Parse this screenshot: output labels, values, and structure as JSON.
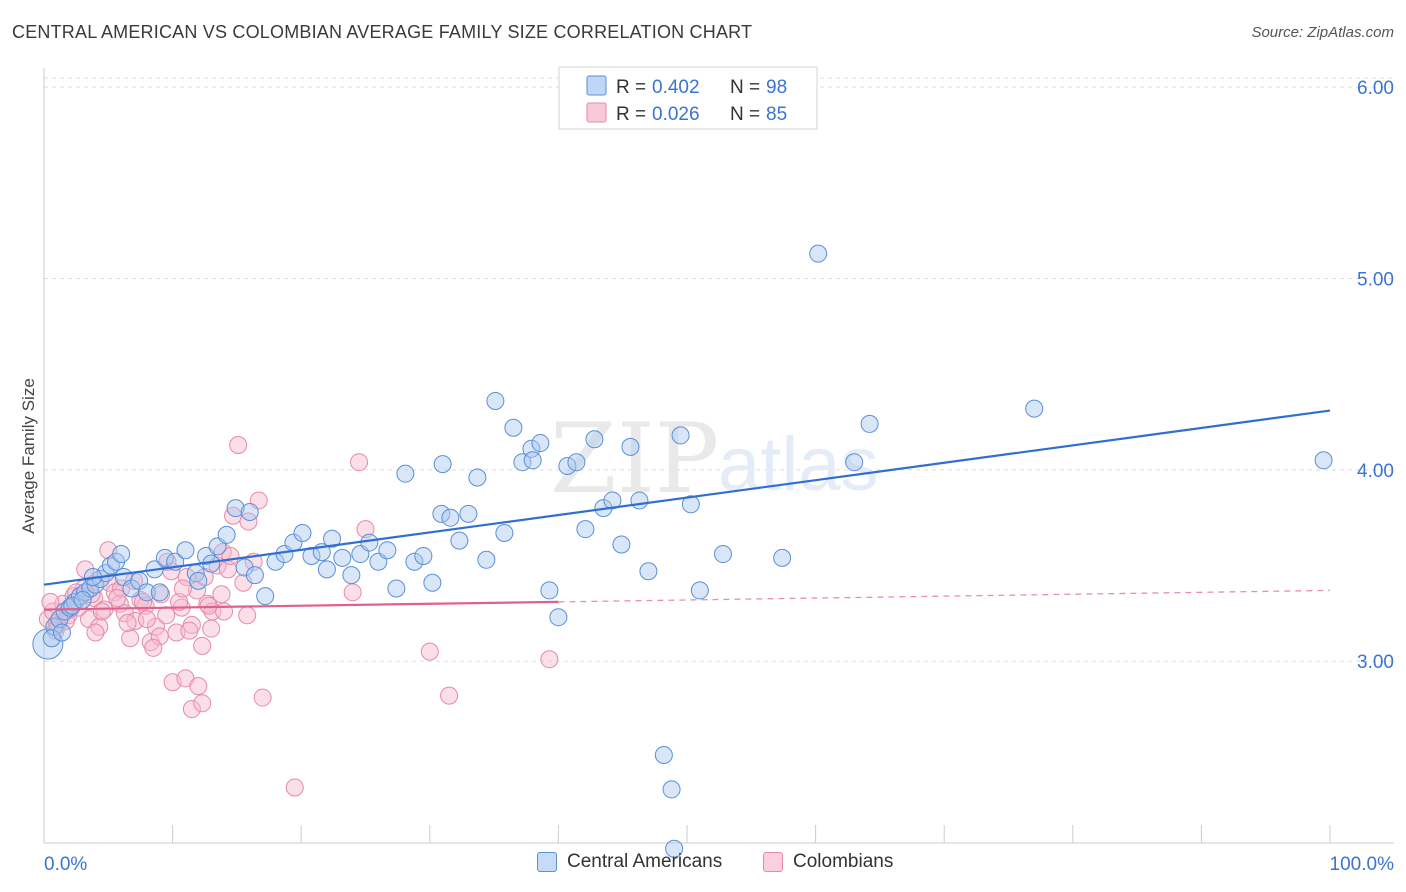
{
  "title": "CENTRAL AMERICAN VS COLOMBIAN AVERAGE FAMILY SIZE CORRELATION CHART",
  "source": "Source: ZipAtlas.com",
  "watermark": {
    "zip": "ZIP",
    "atlas": "atlas"
  },
  "legend_top": [
    {
      "r_label": "R =",
      "r_value": "0.402",
      "n_label": "N =",
      "n_value": "98"
    },
    {
      "r_label": "R =",
      "r_value": "0.026",
      "n_label": "N =",
      "n_value": "85"
    }
  ],
  "legend_bottom": [
    "Central Americans",
    "Colombians"
  ],
  "colors": {
    "blue_fill": "#a9c8f0",
    "blue_stroke": "#5b8fd8",
    "blue_line": "#2f6fd0",
    "pink_fill": "#f6b8cc",
    "pink_stroke": "#e58aa8",
    "pink_line": "#e0608c",
    "value_text": "#3a74d0",
    "grid": "#dddddd"
  },
  "chart_data": {
    "type": "scatter",
    "title": "CENTRAL AMERICAN VS COLOMBIAN AVERAGE FAMILY SIZE CORRELATION CHART",
    "xlabel": "",
    "ylabel": "Average Family Size",
    "xlim": [
      0,
      100
    ],
    "ylim": [
      2.05,
      6.1
    ],
    "x_tick_labels": [
      "0.0%",
      "100.0%"
    ],
    "y_ticks": [
      3.0,
      4.0,
      5.0,
      6.0
    ],
    "y_tick_labels": [
      "3.00",
      "4.00",
      "5.00",
      "6.00"
    ],
    "grid": true,
    "series": [
      {
        "name": "Central Americans",
        "r": 0.402,
        "n": 98,
        "trend": {
          "x": [
            0,
            100
          ],
          "y": [
            3.4,
            4.31
          ]
        },
        "points": [
          [
            0.3,
            3.09
          ],
          [
            0.8,
            3.18
          ],
          [
            1.2,
            3.22
          ],
          [
            1.6,
            3.26
          ],
          [
            2.0,
            3.28
          ],
          [
            2.4,
            3.31
          ],
          [
            2.8,
            3.34
          ],
          [
            3.2,
            3.36
          ],
          [
            3.6,
            3.38
          ],
          [
            4.0,
            3.4
          ],
          [
            4.4,
            3.43
          ],
          [
            4.8,
            3.46
          ],
          [
            5.2,
            3.5
          ],
          [
            5.6,
            3.52
          ],
          [
            6.2,
            3.44
          ],
          [
            6.8,
            3.38
          ],
          [
            7.4,
            3.42
          ],
          [
            8.0,
            3.36
          ],
          [
            8.6,
            3.48
          ],
          [
            9.4,
            3.54
          ],
          [
            10.2,
            3.52
          ],
          [
            11.0,
            3.58
          ],
          [
            11.8,
            3.46
          ],
          [
            12.6,
            3.55
          ],
          [
            13.5,
            3.6
          ],
          [
            14.2,
            3.66
          ],
          [
            14.9,
            3.8
          ],
          [
            15.6,
            3.49
          ],
          [
            16.4,
            3.45
          ],
          [
            17.2,
            3.34
          ],
          [
            18.0,
            3.52
          ],
          [
            18.7,
            3.56
          ],
          [
            19.4,
            3.62
          ],
          [
            20.1,
            3.67
          ],
          [
            20.8,
            3.55
          ],
          [
            21.6,
            3.57
          ],
          [
            22.4,
            3.64
          ],
          [
            23.2,
            3.54
          ],
          [
            23.9,
            3.45
          ],
          [
            24.6,
            3.56
          ],
          [
            25.3,
            3.62
          ],
          [
            26.0,
            3.52
          ],
          [
            26.7,
            3.58
          ],
          [
            27.4,
            3.38
          ],
          [
            28.1,
            3.98
          ],
          [
            28.8,
            3.52
          ],
          [
            29.5,
            3.55
          ],
          [
            30.2,
            3.41
          ],
          [
            30.9,
            3.77
          ],
          [
            31.6,
            3.75
          ],
          [
            32.3,
            3.63
          ],
          [
            33.0,
            3.77
          ],
          [
            33.7,
            3.96
          ],
          [
            34.4,
            3.53
          ],
          [
            35.1,
            4.36
          ],
          [
            35.8,
            3.67
          ],
          [
            36.5,
            4.22
          ],
          [
            37.2,
            4.04
          ],
          [
            37.9,
            4.11
          ],
          [
            38.6,
            4.14
          ],
          [
            39.3,
            3.37
          ],
          [
            40.0,
            3.23
          ],
          [
            40.7,
            4.02
          ],
          [
            41.4,
            4.04
          ],
          [
            42.1,
            3.69
          ],
          [
            42.8,
            4.16
          ],
          [
            43.5,
            3.8
          ],
          [
            44.2,
            3.84
          ],
          [
            44.9,
            3.61
          ],
          [
            45.6,
            4.12
          ],
          [
            46.3,
            3.84
          ],
          [
            47.0,
            3.47
          ],
          [
            48.2,
            2.51
          ],
          [
            48.8,
            2.33
          ],
          [
            49.5,
            4.18
          ],
          [
            50.3,
            3.82
          ],
          [
            51.0,
            3.37
          ],
          [
            52.8,
            3.56
          ],
          [
            57.4,
            3.54
          ],
          [
            60.2,
            5.13
          ],
          [
            63.0,
            4.04
          ],
          [
            64.2,
            4.24
          ],
          [
            77.0,
            4.32
          ],
          [
            99.5,
            4.05
          ],
          [
            0.6,
            3.12
          ],
          [
            1.4,
            3.15
          ],
          [
            2.2,
            3.29
          ],
          [
            3.0,
            3.32
          ],
          [
            3.8,
            3.44
          ],
          [
            6.0,
            3.56
          ],
          [
            9.0,
            3.36
          ],
          [
            12.0,
            3.42
          ],
          [
            13.0,
            3.51
          ],
          [
            16.0,
            3.78
          ],
          [
            22.0,
            3.48
          ],
          [
            31.0,
            4.03
          ],
          [
            49.0,
            2.02
          ],
          [
            38.0,
            4.05
          ]
        ]
      },
      {
        "name": "Colombians",
        "r": 0.026,
        "n": 85,
        "trend": {
          "x": [
            0,
            40
          ],
          "y": [
            3.27,
            3.31
          ]
        },
        "trend_extended": {
          "x": [
            40,
            100
          ],
          "y": [
            3.31,
            3.37
          ]
        },
        "points": [
          [
            0.3,
            3.22
          ],
          [
            0.7,
            3.26
          ],
          [
            1.1,
            3.19
          ],
          [
            1.5,
            3.3
          ],
          [
            1.9,
            3.24
          ],
          [
            2.3,
            3.34
          ],
          [
            2.7,
            3.28
          ],
          [
            3.1,
            3.38
          ],
          [
            3.5,
            3.22
          ],
          [
            3.9,
            3.33
          ],
          [
            4.3,
            3.18
          ],
          [
            4.7,
            3.27
          ],
          [
            5.1,
            3.41
          ],
          [
            5.5,
            3.36
          ],
          [
            5.9,
            3.3
          ],
          [
            6.3,
            3.25
          ],
          [
            6.7,
            3.12
          ],
          [
            7.1,
            3.21
          ],
          [
            7.5,
            3.32
          ],
          [
            7.9,
            3.29
          ],
          [
            8.3,
            3.1
          ],
          [
            8.7,
            3.18
          ],
          [
            9.1,
            3.35
          ],
          [
            9.5,
            3.24
          ],
          [
            9.9,
            3.47
          ],
          [
            10.3,
            3.15
          ],
          [
            10.7,
            3.28
          ],
          [
            11.1,
            3.44
          ],
          [
            11.5,
            3.19
          ],
          [
            11.9,
            3.37
          ],
          [
            12.3,
            3.08
          ],
          [
            12.7,
            3.3
          ],
          [
            13.1,
            3.26
          ],
          [
            13.5,
            3.5
          ],
          [
            13.9,
            3.57
          ],
          [
            14.3,
            3.48
          ],
          [
            14.7,
            3.76
          ],
          [
            15.1,
            4.13
          ],
          [
            15.5,
            3.41
          ],
          [
            15.9,
            3.73
          ],
          [
            16.3,
            3.52
          ],
          [
            16.7,
            3.84
          ],
          [
            10.0,
            2.89
          ],
          [
            11.0,
            2.91
          ],
          [
            11.5,
            2.75
          ],
          [
            12.0,
            2.87
          ],
          [
            12.3,
            2.78
          ],
          [
            17.0,
            2.81
          ],
          [
            19.5,
            2.34
          ],
          [
            24.0,
            3.36
          ],
          [
            24.5,
            4.04
          ],
          [
            25.0,
            3.69
          ],
          [
            30.0,
            3.05
          ],
          [
            31.5,
            2.82
          ],
          [
            39.3,
            3.01
          ],
          [
            2.0,
            3.27
          ],
          [
            4.0,
            3.15
          ],
          [
            6.0,
            3.38
          ],
          [
            8.0,
            3.22
          ],
          [
            9.0,
            3.13
          ],
          [
            10.5,
            3.31
          ],
          [
            12.5,
            3.44
          ],
          [
            13.0,
            3.17
          ],
          [
            14.0,
            3.26
          ],
          [
            15.8,
            3.24
          ],
          [
            3.2,
            3.48
          ],
          [
            5.0,
            3.58
          ],
          [
            7.0,
            3.42
          ],
          [
            9.6,
            3.52
          ],
          [
            11.3,
            3.16
          ],
          [
            12.8,
            3.29
          ],
          [
            1.0,
            3.2
          ],
          [
            0.5,
            3.31
          ],
          [
            2.5,
            3.36
          ],
          [
            4.5,
            3.26
          ],
          [
            6.5,
            3.2
          ],
          [
            8.5,
            3.07
          ],
          [
            10.8,
            3.38
          ],
          [
            13.8,
            3.35
          ],
          [
            14.5,
            3.55
          ],
          [
            7.7,
            3.31
          ],
          [
            5.7,
            3.33
          ],
          [
            3.7,
            3.35
          ],
          [
            1.7,
            3.21
          ],
          [
            0.9,
            3.16
          ]
        ]
      }
    ]
  }
}
